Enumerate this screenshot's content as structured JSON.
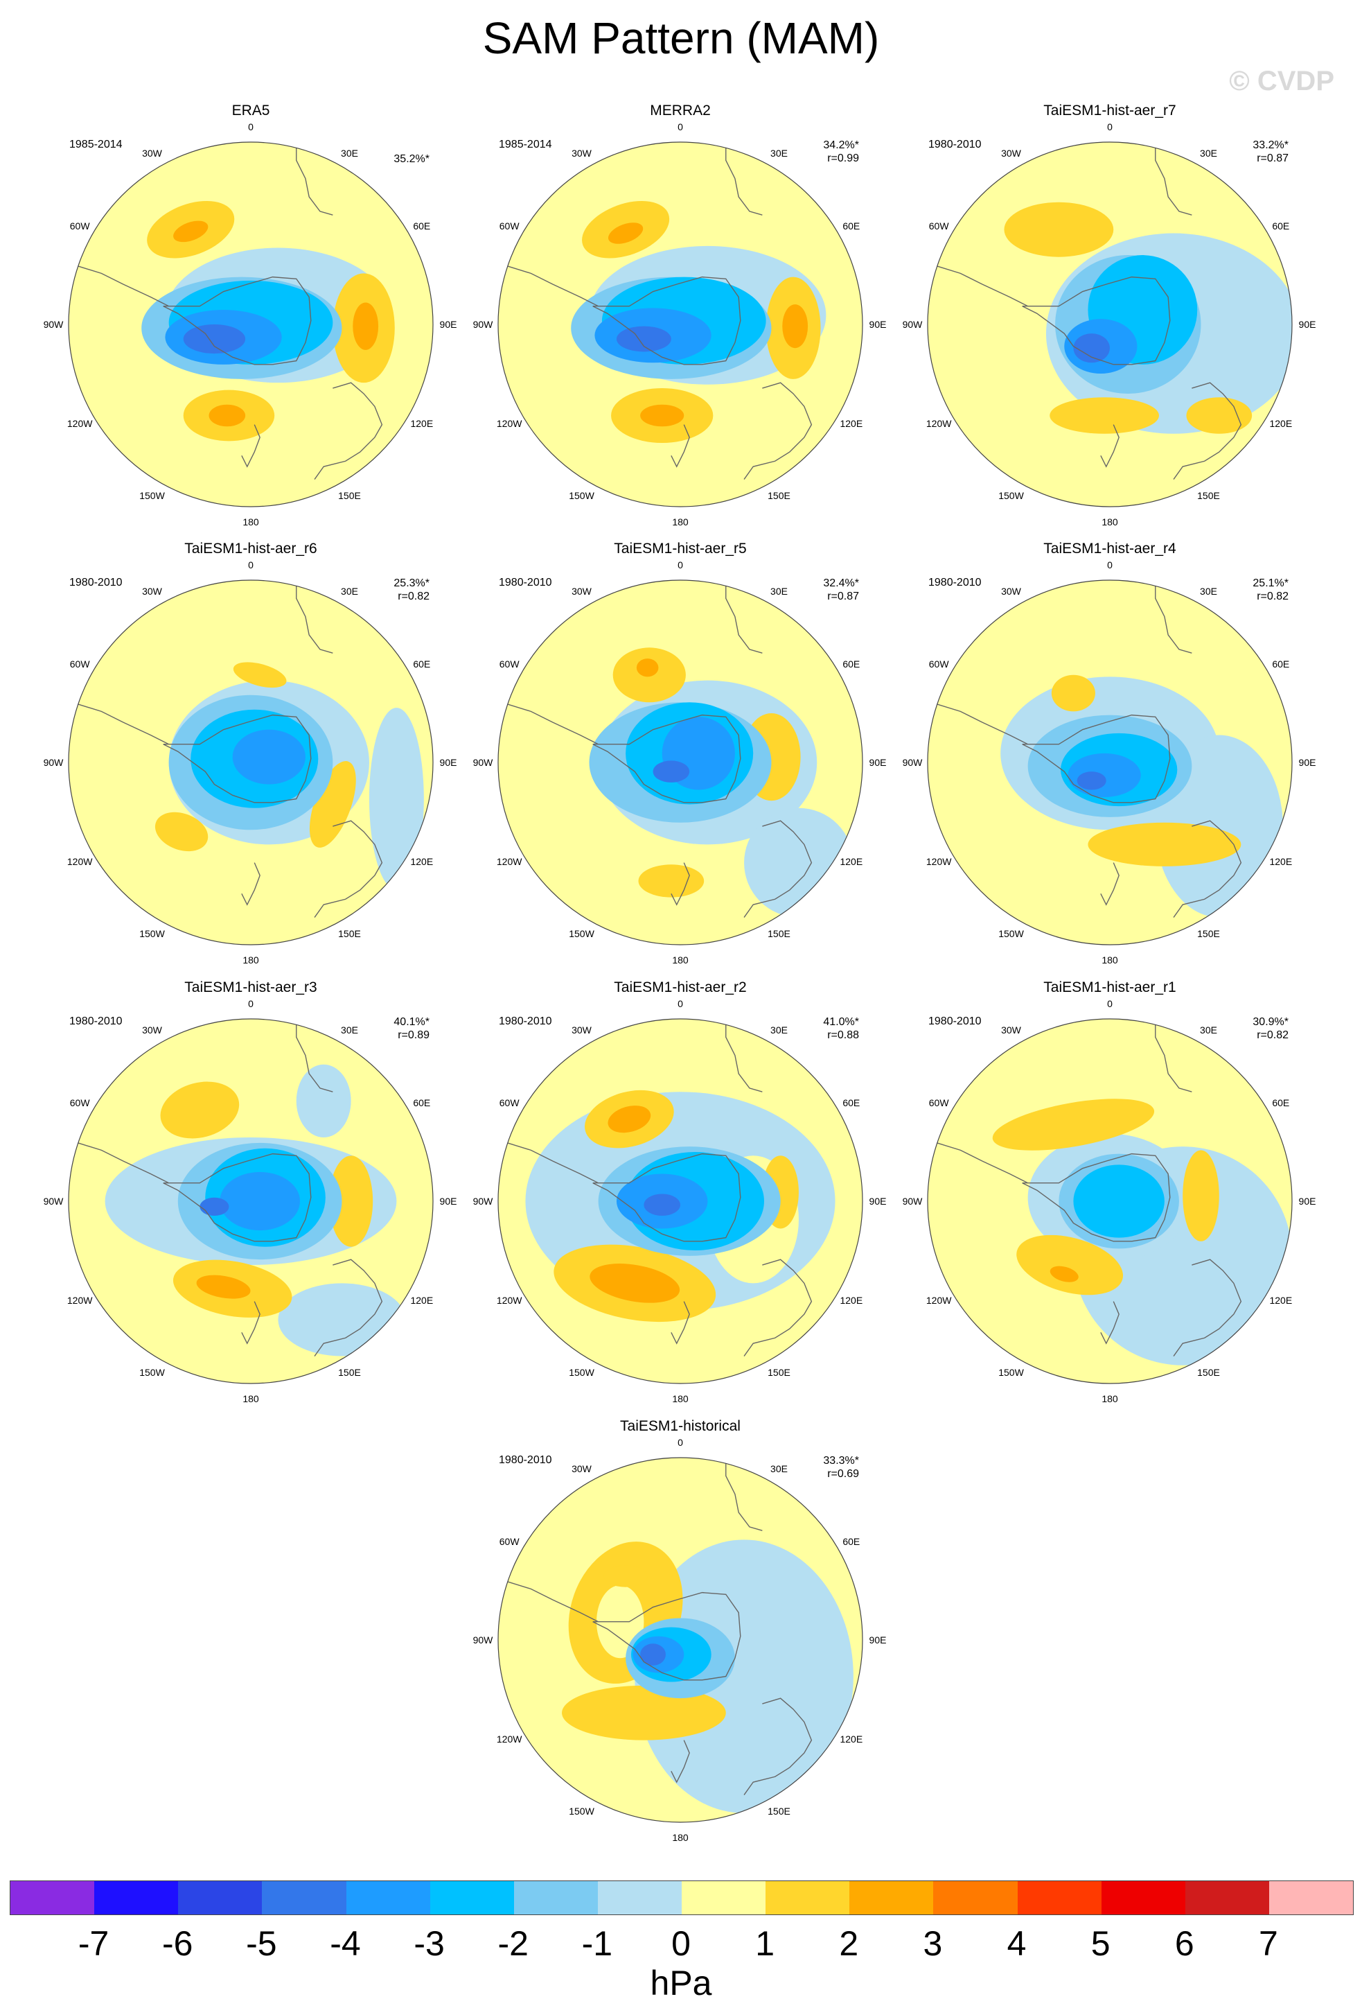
{
  "title": "SAM Pattern (MAM)",
  "watermark": "© CVDP",
  "longitude_labels": [
    "0",
    "30E",
    "60E",
    "90E",
    "120E",
    "150E",
    "180",
    "150W",
    "120W",
    "90W",
    "60W",
    "30W"
  ],
  "panels": [
    {
      "name": "ERA5",
      "years": "1985-2014",
      "pct": "35.2%*",
      "r": "",
      "pattern": "obs1"
    },
    {
      "name": "MERRA2",
      "years": "1985-2014",
      "pct": "34.2%*",
      "r": "r=0.99",
      "pattern": "obs2"
    },
    {
      "name": "TaiESM1-hist-aer_r7",
      "years": "1980-2010",
      "pct": "33.2%*",
      "r": "r=0.87",
      "pattern": "r7"
    },
    {
      "name": "TaiESM1-hist-aer_r6",
      "years": "1980-2010",
      "pct": "25.3%*",
      "r": "r=0.82",
      "pattern": "r6"
    },
    {
      "name": "TaiESM1-hist-aer_r5",
      "years": "1980-2010",
      "pct": "32.4%*",
      "r": "r=0.87",
      "pattern": "r5"
    },
    {
      "name": "TaiESM1-hist-aer_r4",
      "years": "1980-2010",
      "pct": "25.1%*",
      "r": "r=0.82",
      "pattern": "r4"
    },
    {
      "name": "TaiESM1-hist-aer_r3",
      "years": "1980-2010",
      "pct": "40.1%*",
      "r": "r=0.89",
      "pattern": "r3"
    },
    {
      "name": "TaiESM1-hist-aer_r2",
      "years": "1980-2010",
      "pct": "41.0%*",
      "r": "r=0.88",
      "pattern": "r2"
    },
    {
      "name": "TaiESM1-hist-aer_r1",
      "years": "1980-2010",
      "pct": "30.9%*",
      "r": "r=0.82",
      "pattern": "r1"
    },
    {
      "name": "TaiESM1-historical",
      "years": "1980-2010",
      "pct": "33.3%*",
      "r": "r=0.69",
      "pattern": "hist"
    }
  ],
  "colorbar": {
    "colors": [
      "#8a2be2",
      "#1e10ff",
      "#2b45e6",
      "#3377ea",
      "#1e9cff",
      "#00c1ff",
      "#7ccbf2",
      "#b5dff2",
      "#ffffa0",
      "#ffd62d",
      "#ffaa00",
      "#ff7a00",
      "#ff3a00",
      "#ee0000",
      "#d01c1c",
      "#ffb6b6"
    ],
    "ticks": [
      "-7",
      "-6",
      "-5",
      "-4",
      "-3",
      "-2",
      "-1",
      "0",
      "1",
      "2",
      "3",
      "4",
      "5",
      "6",
      "7"
    ],
    "units": "hPa"
  },
  "palette": {
    "neg1": "#b5dff2",
    "neg2": "#7ccbf2",
    "neg3": "#00c1ff",
    "neg4": "#1e9cff",
    "neg5": "#3377ea",
    "neg6": "#2b45e6",
    "pos0": "#ffffa0",
    "pos1": "#ffd62d",
    "pos2": "#ffaa00"
  }
}
